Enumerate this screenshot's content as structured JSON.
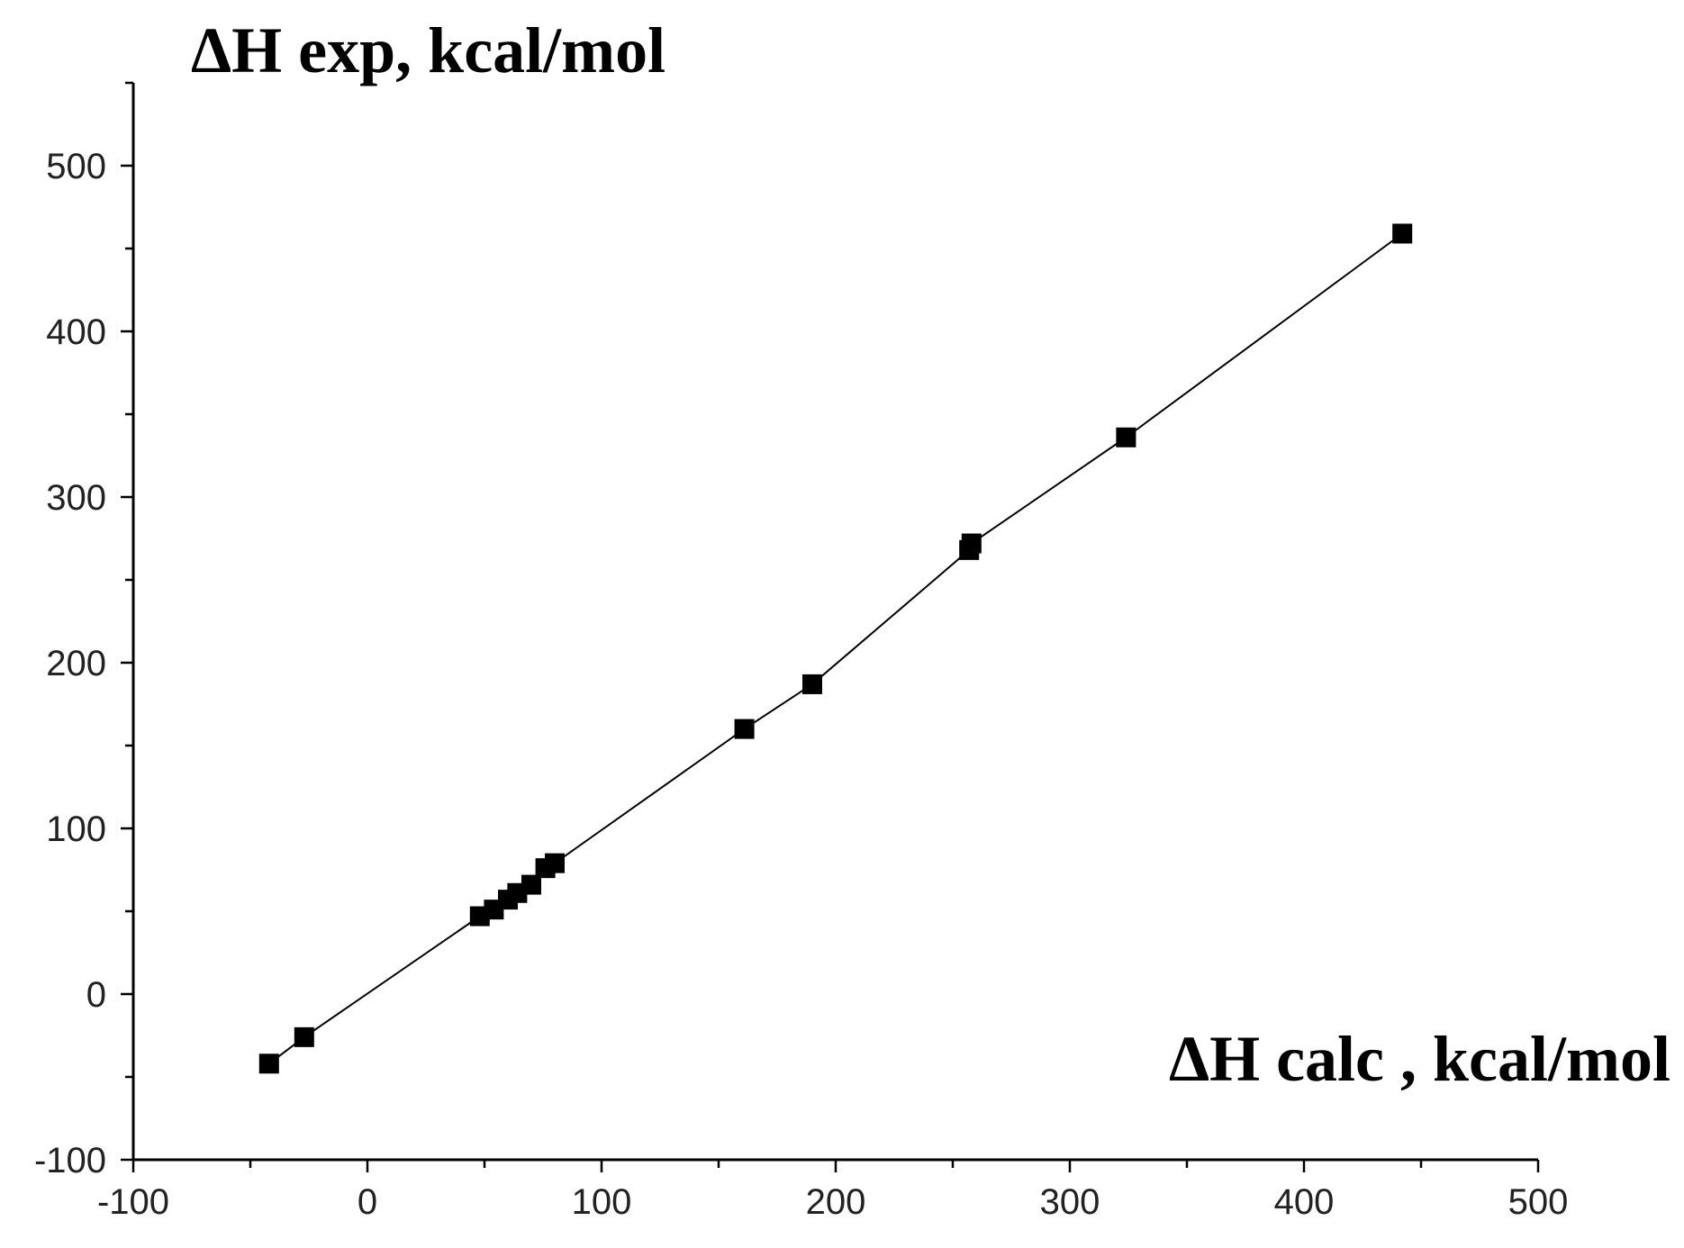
{
  "chart_data": {
    "type": "scatter",
    "title": "",
    "ylabel": "ΔH exp, kcal/mol",
    "xlabel": "ΔH calc , kcal/mol",
    "xlim": [
      -100,
      500
    ],
    "ylim": [
      -100,
      550
    ],
    "x_ticks": [
      -100,
      0,
      100,
      200,
      300,
      400,
      500
    ],
    "y_ticks": [
      -100,
      0,
      100,
      200,
      300,
      400,
      500
    ],
    "x_tick_labels": [
      "-100",
      "0",
      "100",
      "200",
      "300",
      "400",
      "500"
    ],
    "y_tick_labels": [
      "-100",
      "0",
      "100",
      "200",
      "300",
      "400",
      "500"
    ],
    "x_minor_step": 50,
    "y_minor_step": 50,
    "grid": false,
    "legend": "none",
    "marker": "square",
    "connected_line": true,
    "colors": {
      "marker": "#000000",
      "line": "#000000",
      "axis": "#000000"
    },
    "series": [
      {
        "points": [
          {
            "x": -42,
            "y": -42
          },
          {
            "x": -27,
            "y": -26
          },
          {
            "x": 48,
            "y": 47
          },
          {
            "x": 54,
            "y": 51
          },
          {
            "x": 60,
            "y": 57
          },
          {
            "x": 64,
            "y": 61
          },
          {
            "x": 70,
            "y": 66
          },
          {
            "x": 76,
            "y": 76
          },
          {
            "x": 80,
            "y": 79
          },
          {
            "x": 161,
            "y": 160
          },
          {
            "x": 190,
            "y": 187
          },
          {
            "x": 257,
            "y": 268
          },
          {
            "x": 258,
            "y": 272
          },
          {
            "x": 324,
            "y": 336
          },
          {
            "x": 442,
            "y": 459
          }
        ]
      }
    ]
  }
}
